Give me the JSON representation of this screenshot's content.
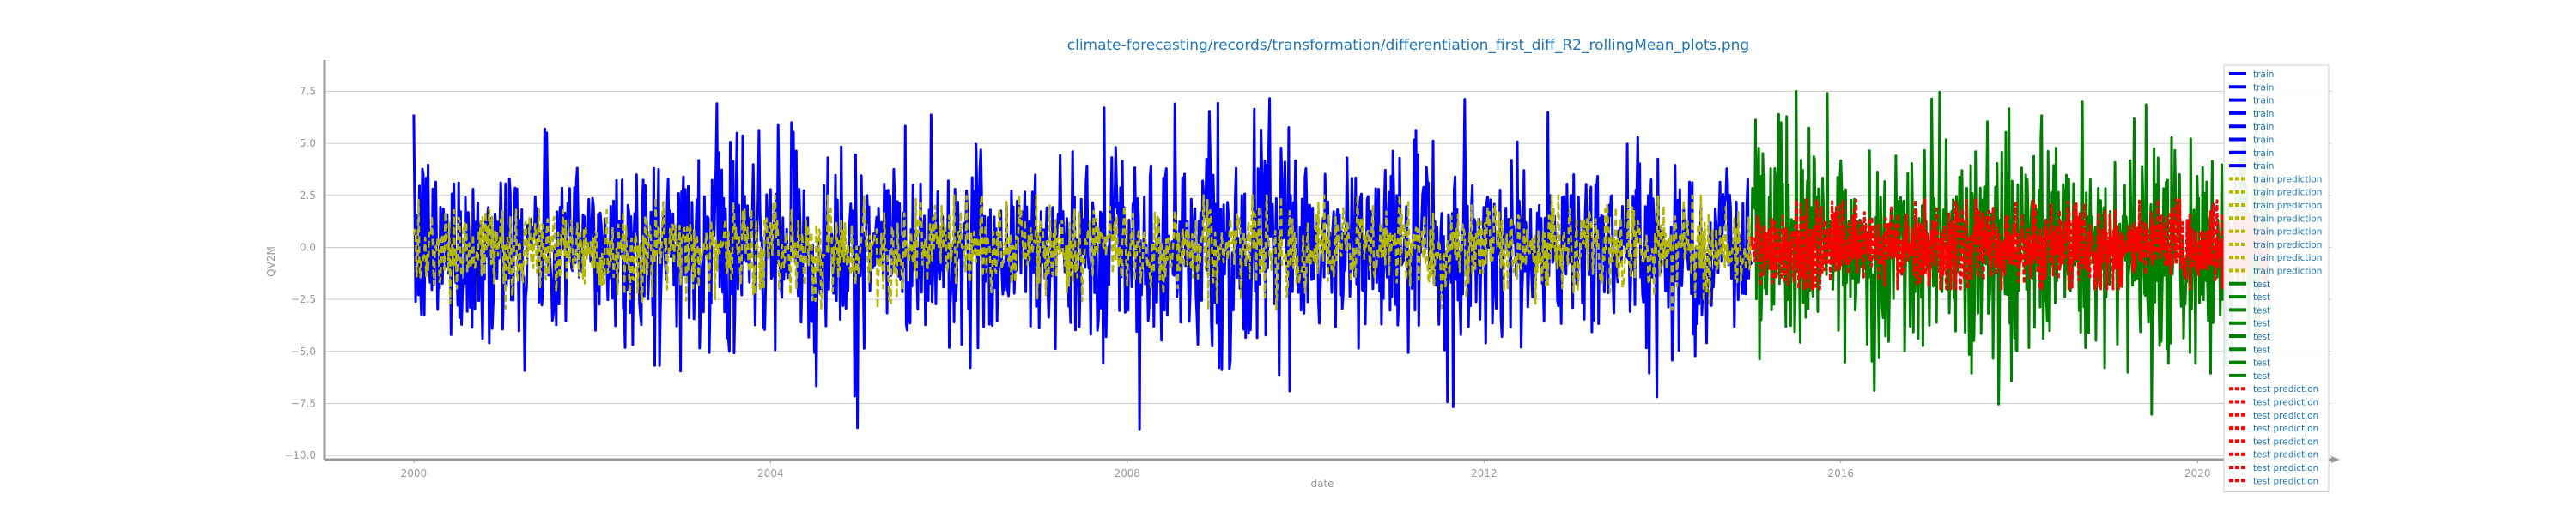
{
  "chart_data": {
    "type": "line",
    "title": "climate-forecasting/records/transformation/differentiation_first_diff_R2_rollingMean_plots.png",
    "xlabel": "date",
    "ylabel": "QV2M",
    "xlim": [
      1999.0,
      2021.5
    ],
    "ylim": [
      -10.2,
      9.0
    ],
    "x_ticks": [
      "2000",
      "2004",
      "2008",
      "2012",
      "2016",
      "2020"
    ],
    "y_ticks": [
      "7.5",
      "5.0",
      "2.5",
      "0.0",
      "−2.5",
      "−5.0",
      "−7.5",
      "−10.0"
    ],
    "grid": "horizontal",
    "legend_position": "right",
    "colors": {
      "train": "#0000ff",
      "train prediction": "#b5b800",
      "test": "#008000",
      "test prediction": "#ff0000",
      "title": "#1f77b4",
      "legend_text": "#1f77b4",
      "axis": "#999999"
    },
    "series": [
      {
        "name": "train",
        "x_range": [
          2000.0,
          2015.0
        ],
        "y_typical_range": [
          -5.5,
          5.5
        ],
        "y_extremes": [
          -9.2,
          8.0
        ]
      },
      {
        "name": "train prediction",
        "x_range": [
          2000.0,
          2015.0
        ],
        "y_typical_range": [
          -3.0,
          2.5
        ]
      },
      {
        "name": "test",
        "x_range": [
          2015.0,
          2020.8
        ],
        "y_typical_range": [
          -6.0,
          6.0
        ],
        "y_extremes": [
          -8.5,
          7.5
        ]
      },
      {
        "name": "test prediction",
        "x_range": [
          2015.0,
          2020.8
        ],
        "y_typical_range": [
          -2.0,
          2.3
        ]
      }
    ],
    "legend": [
      {
        "label": "train",
        "series": "train",
        "style": "solid"
      },
      {
        "label": "train",
        "series": "train",
        "style": "solid"
      },
      {
        "label": "train",
        "series": "train",
        "style": "solid"
      },
      {
        "label": "train",
        "series": "train",
        "style": "solid"
      },
      {
        "label": "train",
        "series": "train",
        "style": "solid"
      },
      {
        "label": "train",
        "series": "train",
        "style": "solid"
      },
      {
        "label": "train",
        "series": "train",
        "style": "solid"
      },
      {
        "label": "train",
        "series": "train",
        "style": "solid"
      },
      {
        "label": "train prediction",
        "series": "train prediction",
        "style": "dashed"
      },
      {
        "label": "train prediction",
        "series": "train prediction",
        "style": "dashed"
      },
      {
        "label": "train prediction",
        "series": "train prediction",
        "style": "dashed"
      },
      {
        "label": "train prediction",
        "series": "train prediction",
        "style": "dashed"
      },
      {
        "label": "train prediction",
        "series": "train prediction",
        "style": "dashed"
      },
      {
        "label": "train prediction",
        "series": "train prediction",
        "style": "dashed"
      },
      {
        "label": "train prediction",
        "series": "train prediction",
        "style": "dashed"
      },
      {
        "label": "train prediction",
        "series": "train prediction",
        "style": "dashed"
      },
      {
        "label": "test",
        "series": "test",
        "style": "solid"
      },
      {
        "label": "test",
        "series": "test",
        "style": "solid"
      },
      {
        "label": "test",
        "series": "test",
        "style": "solid"
      },
      {
        "label": "test",
        "series": "test",
        "style": "solid"
      },
      {
        "label": "test",
        "series": "test",
        "style": "solid"
      },
      {
        "label": "test",
        "series": "test",
        "style": "solid"
      },
      {
        "label": "test",
        "series": "test",
        "style": "solid"
      },
      {
        "label": "test",
        "series": "test",
        "style": "solid"
      },
      {
        "label": "test prediction",
        "series": "test prediction",
        "style": "dashed"
      },
      {
        "label": "test prediction",
        "series": "test prediction",
        "style": "dashed"
      },
      {
        "label": "test prediction",
        "series": "test prediction",
        "style": "dashed"
      },
      {
        "label": "test prediction",
        "series": "test prediction",
        "style": "dashed"
      },
      {
        "label": "test prediction",
        "series": "test prediction",
        "style": "dashed"
      },
      {
        "label": "test prediction",
        "series": "test prediction",
        "style": "dashed"
      },
      {
        "label": "test prediction",
        "series": "test prediction",
        "style": "dashed"
      },
      {
        "label": "test prediction",
        "series": "test prediction",
        "style": "dashed"
      }
    ]
  }
}
